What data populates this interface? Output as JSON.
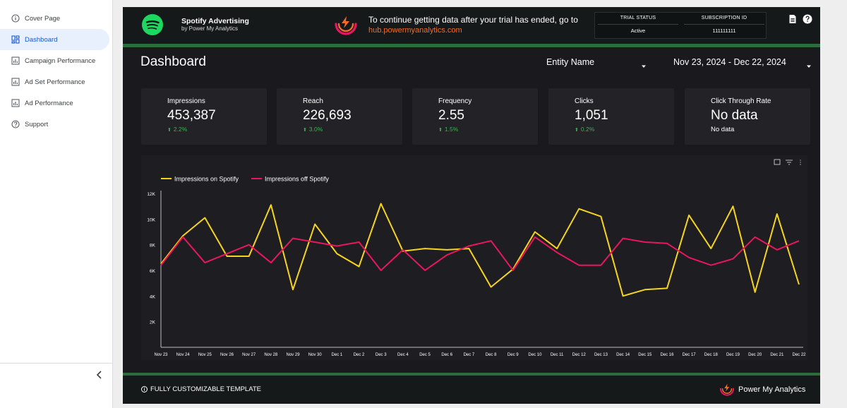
{
  "sidebar": {
    "items": [
      {
        "label": "Cover Page",
        "icon": "info-icon"
      },
      {
        "label": "Dashboard",
        "icon": "dashboard-icon",
        "active": true
      },
      {
        "label": "Campaign Performance",
        "icon": "bar-chart-icon"
      },
      {
        "label": "Ad Set Performance",
        "icon": "bar-chart-icon"
      },
      {
        "label": "Ad Performance",
        "icon": "bar-chart-icon"
      },
      {
        "label": "Support",
        "icon": "help-icon"
      }
    ],
    "collapse_icon": "chevron-left-icon"
  },
  "header": {
    "brand_title": "Spotify Advertising",
    "brand_subtitle": "by Power My Analytics",
    "trial_message": "To continue getting data after your trial has ended, go to",
    "trial_link": "hub.powermyanalytics.com",
    "trial_status_label": "TRIAL STATUS",
    "trial_status_value": "Active",
    "subscription_label": "SUBSCRIPTION ID",
    "subscription_value": "111111111",
    "icons": [
      "document-icon",
      "help-icon"
    ]
  },
  "page": {
    "title": "Dashboard",
    "entity_filter": "Entity Name",
    "date_range": "Nov 23, 2024 - Dec 22, 2024"
  },
  "kpis": [
    {
      "label": "Impressions",
      "value": "453,387",
      "delta": "2.2%"
    },
    {
      "label": "Reach",
      "value": "226,693",
      "delta": "3.0%"
    },
    {
      "label": "Frequency",
      "value": "2.55",
      "delta": "1.5%"
    },
    {
      "label": "Clicks",
      "value": "1,051",
      "delta": "0.2%"
    },
    {
      "label": "Click Through Rate",
      "value": "No data",
      "sub": "No data"
    }
  ],
  "colors": {
    "on_spotify": "#f5d41f",
    "off_spotify": "#e8175d",
    "accent_green": "#2c6e3b",
    "positive": "#3fae50",
    "link": "#f06b2a"
  },
  "chart_data": {
    "type": "line",
    "legend_position": "top-left",
    "ylim": [
      0,
      12000
    ],
    "yticks": [
      "0",
      "2K",
      "4K",
      "6K",
      "8K",
      "10K",
      "12K"
    ],
    "categories": [
      "Nov 23",
      "Nov 24",
      "Nov 25",
      "Nov 26",
      "Nov 27",
      "Nov 28",
      "Nov 29",
      "Nov 30",
      "Dec 1",
      "Dec 2",
      "Dec 3",
      "Dec 4",
      "Dec 5",
      "Dec 6",
      "Dec 7",
      "Dec 8",
      "Dec 9",
      "Dec 10",
      "Dec 11",
      "Dec 12",
      "Dec 13",
      "Dec 14",
      "Dec 15",
      "Dec 16",
      "Dec 17",
      "Dec 18",
      "Dec 19",
      "Dec 20",
      "Dec 21",
      "Dec 22"
    ],
    "series": [
      {
        "name": "Impressions on Spotify",
        "values": [
          6500,
          8700,
          10100,
          7100,
          7100,
          11100,
          4500,
          9600,
          7300,
          6300,
          11200,
          7500,
          7700,
          7600,
          7700,
          4700,
          6100,
          9000,
          7700,
          10800,
          10200,
          4000,
          4500,
          4600,
          10300,
          7700,
          11000,
          4300,
          10400,
          4900
        ]
      },
      {
        "name": "Impressions off Spotify",
        "values": [
          6400,
          8600,
          6600,
          7300,
          8000,
          6600,
          8500,
          8200,
          7900,
          8200,
          6000,
          7600,
          6000,
          7200,
          7900,
          8300,
          6000,
          8600,
          7400,
          6400,
          6400,
          8500,
          8200,
          8100,
          7000,
          6400,
          6900,
          8600,
          7600,
          8300
        ]
      }
    ]
  },
  "chart_toolbar_icons": [
    "export-icon",
    "filter-icon",
    "more-icon"
  ],
  "footer": {
    "note": "FULLY CUSTOMIZABLE TEMPLATE",
    "brand": "Power My Analytics"
  }
}
